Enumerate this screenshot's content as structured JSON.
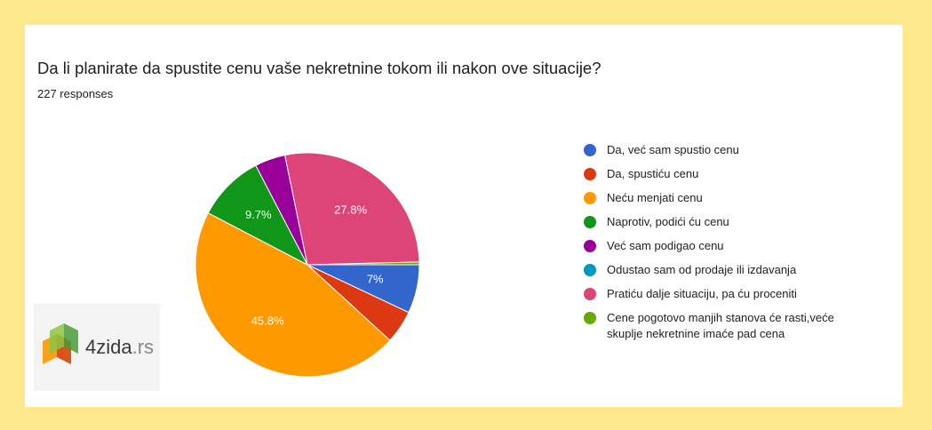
{
  "chart_data": {
    "type": "pie",
    "title": "Da li planirate da spustite cenu vaše nekretnine tokom ili nakon ove situacije?",
    "subtitle": "227 responses",
    "categories": [
      "Da, već sam spustio cenu",
      "Da, spustiću cenu",
      "Neću menjati cenu",
      "Naprotiv, podići ću cenu",
      "Već sam podigao cenu",
      "Odustao sam od prodaje ili izdavanja",
      "Pratiću dalje situaciju, pa ću proceniti",
      "Cene pogotovo manjih stanova će rasti,veće skuplje nekretnine imaće pad cena"
    ],
    "values": [
      7,
      4.8,
      45.8,
      9.7,
      4.4,
      0,
      27.8,
      0.4
    ],
    "value_labels": [
      "7%",
      null,
      "45.8%",
      "9.7%",
      null,
      null,
      "27.8%",
      null
    ],
    "colors": [
      "#3366cc",
      "#dc3912",
      "#ff9900",
      "#109618",
      "#990099",
      "#0099c6",
      "#dd4477",
      "#66aa00"
    ],
    "start_angle": 90
  },
  "logo": {
    "name": "4zida",
    "suffix": ".rs"
  }
}
